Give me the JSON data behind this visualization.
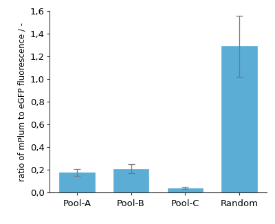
{
  "categories": [
    "Pool-A",
    "Pool-B",
    "Pool-C",
    "Random"
  ],
  "values": [
    0.18,
    0.21,
    0.04,
    1.29
  ],
  "errors": [
    0.03,
    0.04,
    0.01,
    0.27
  ],
  "bar_color": "#5BADD6",
  "edge_color": "#5BADD6",
  "error_color": "#777777",
  "ylabel": "ratio of mPlum to eGFP fluorescence / -",
  "ylim": [
    0,
    1.6
  ],
  "yticks": [
    0.0,
    0.2,
    0.4,
    0.6,
    0.8,
    1.0,
    1.2,
    1.4,
    1.6
  ],
  "ytick_labels": [
    "0,0",
    "0,2",
    "0,4",
    "0,6",
    "0,8",
    "1,0",
    "1,2",
    "1,4",
    "1,6"
  ],
  "bar_width": 0.65,
  "background_color": "#ffffff",
  "ylabel_fontsize": 8.5,
  "tick_fontsize": 9.5,
  "fig_width": 4.0,
  "fig_height": 3.26,
  "dpi": 100
}
